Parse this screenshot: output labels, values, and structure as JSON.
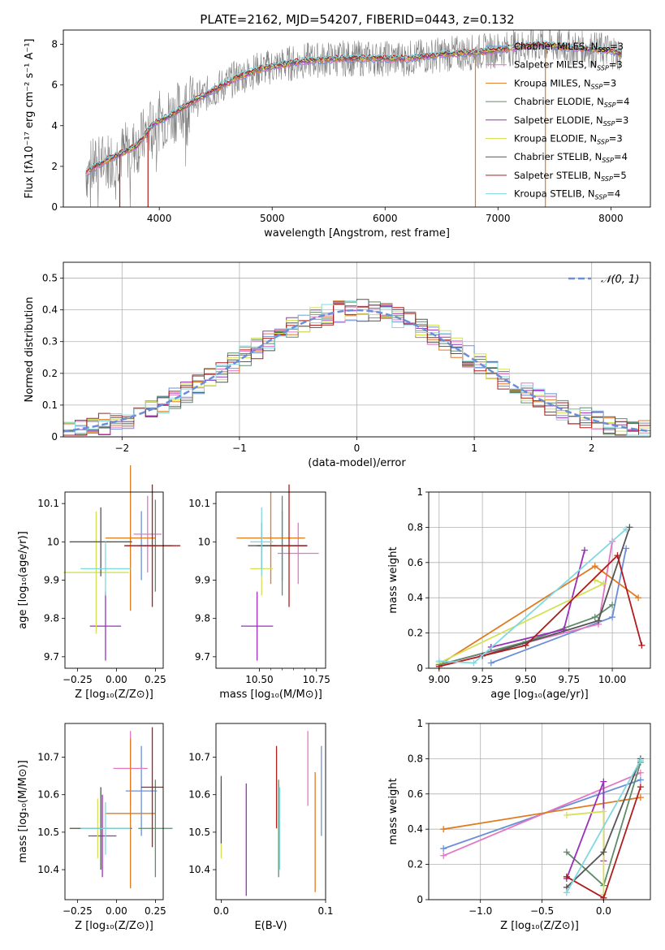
{
  "figure": {
    "title": "PLATE=2162, MJD=54207, FIBERID=0443, z=0.132"
  },
  "models": [
    {
      "label": "Chabrier MILES, N",
      "sub": "SSP",
      "suffix": "=3",
      "color": "#6a8fd8"
    },
    {
      "label": "Salpeter MILES, N",
      "sub": "SSP",
      "suffix": "=3",
      "color": "#e377c2"
    },
    {
      "label": "Kroupa MILES, N",
      "sub": "SSP",
      "suffix": "=3",
      "color": "#e07b20"
    },
    {
      "label": "Chabrier ELODIE, N",
      "sub": "SSP",
      "suffix": "=4",
      "color": "#5e8c6a"
    },
    {
      "label": "Salpeter ELODIE, N",
      "sub": "SSP",
      "suffix": "=3",
      "color": "#9b30b8"
    },
    {
      "label": "Kroupa ELODIE, N",
      "sub": "SSP",
      "suffix": "=3",
      "color": "#d4e157"
    },
    {
      "label": "Chabrier STELIB, N",
      "sub": "SSP",
      "suffix": "=4",
      "color": "#555555"
    },
    {
      "label": "Salpeter STELIB, N",
      "sub": "SSP",
      "suffix": "=5",
      "color": "#b01c1c"
    },
    {
      "label": "Kroupa STELIB, N",
      "sub": "SSP",
      "suffix": "=4",
      "color": "#80d8e0"
    }
  ],
  "chart_data": [
    {
      "id": "spectrum",
      "type": "line",
      "xlabel": "wavelength [Angstrom, rest frame]",
      "ylabel": "Flux [fλ10⁻¹⁷ erg cm⁻² s⁻¹ A⁻¹]",
      "xlim": [
        3150,
        8350
      ],
      "ylim": [
        0,
        8.7
      ],
      "xticks": [
        4000,
        5000,
        6000,
        7000,
        8000
      ],
      "yticks": [
        0,
        2,
        4,
        6,
        8
      ],
      "spectrum_anchors": [
        [
          3350,
          1.7
        ],
        [
          3500,
          2.2
        ],
        [
          3650,
          2.6
        ],
        [
          3800,
          3.0
        ],
        [
          3950,
          4.1
        ],
        [
          4100,
          4.5
        ],
        [
          4300,
          5.2
        ],
        [
          4500,
          5.8
        ],
        [
          4700,
          6.4
        ],
        [
          4900,
          6.8
        ],
        [
          5100,
          7.0
        ],
        [
          5300,
          7.2
        ],
        [
          5600,
          7.3
        ],
        [
          5900,
          7.3
        ],
        [
          6200,
          7.3
        ],
        [
          6500,
          7.5
        ],
        [
          6800,
          7.6
        ],
        [
          7100,
          7.8
        ],
        [
          7400,
          8.0
        ],
        [
          7700,
          7.8
        ],
        [
          8000,
          7.7
        ],
        [
          8100,
          7.5
        ]
      ],
      "drops": [
        3650,
        3900,
        6800,
        7420
      ],
      "grid": false,
      "legend": "upper right"
    },
    {
      "id": "residuals",
      "type": "histogram",
      "xlabel": "(data-model)/error",
      "ylabel": "Normed distribution",
      "xlim": [
        -2.5,
        2.5
      ],
      "ylim": [
        0,
        0.55
      ],
      "xticks": [
        -2,
        -1,
        0,
        1,
        2
      ],
      "yticks": [
        0.0,
        0.1,
        0.2,
        0.3,
        0.4,
        0.5
      ],
      "bin_width": 0.1,
      "reference_label": "𝒩(0, 1)",
      "reference_color": "#6a8fd8",
      "grid": true,
      "legend": "upper right"
    },
    {
      "id": "age-vs-Z",
      "type": "errorbar",
      "xlabel": "Z [log₁₀(Z/Z⊙)]",
      "ylabel": "age  [log₁₀(age/yr)]",
      "xlim": [
        -0.33,
        0.3
      ],
      "ylim": [
        9.67,
        10.13
      ],
      "xticks": [
        -0.25,
        0.0,
        0.25
      ],
      "xtick_labels": [
        "−0.25",
        "0.00",
        "0.25"
      ],
      "yticks": [
        9.7,
        9.8,
        9.9,
        10.0,
        10.1
      ],
      "points": [
        {
          "x": 0.16,
          "xerr": 0.1,
          "y": 9.99,
          "yerr": 0.09
        },
        {
          "x": 0.2,
          "xerr": 0.09,
          "y": 10.02,
          "yerr": 0.1
        },
        {
          "x": 0.09,
          "xerr": 0.16,
          "y": 10.01,
          "yerr": 0.19
        },
        {
          "x": 0.25,
          "xerr": 0.11,
          "y": 9.99,
          "yerr": 0.12
        },
        {
          "x": -0.07,
          "xerr": 0.1,
          "y": 9.78,
          "yerr": 0.09
        },
        {
          "x": -0.13,
          "xerr": 0.21,
          "y": 9.92,
          "yerr": 0.16
        },
        {
          "x": -0.1,
          "xerr": 0.2,
          "y": 10.0,
          "yerr": 0.09
        },
        {
          "x": 0.23,
          "xerr": 0.18,
          "y": 9.99,
          "yerr": 0.16
        },
        {
          "x": -0.07,
          "xerr": 0.16,
          "y": 9.93,
          "yerr": 0.07
        }
      ]
    },
    {
      "id": "age-vs-mass",
      "type": "errorbar",
      "xlabel": "mass [log₁₀(M/M⊙)]",
      "ylabel": "",
      "xlim": [
        10.31,
        10.79
      ],
      "ylim": [
        9.67,
        10.13
      ],
      "xticks": [
        10.5,
        10.75
      ],
      "xtick_labels": [
        "10.50",
        "10.75"
      ],
      "xminor": [
        10.55,
        10.6,
        10.65,
        10.7
      ],
      "yticks": [
        9.7,
        9.8,
        9.9,
        10.0,
        10.1
      ],
      "points": [
        {
          "x": 10.6,
          "xerr": 0.11,
          "y": 9.99,
          "yerr": 0.09
        },
        {
          "x": 10.67,
          "xerr": 0.09,
          "y": 9.97,
          "yerr": 0.08
        },
        {
          "x": 10.55,
          "xerr": 0.15,
          "y": 10.01,
          "yerr": 0.12
        },
        {
          "x": 10.6,
          "xerr": 0.11,
          "y": 9.99,
          "yerr": 0.13
        },
        {
          "x": 10.49,
          "xerr": 0.07,
          "y": 9.78,
          "yerr": 0.09
        },
        {
          "x": 10.51,
          "xerr": 0.05,
          "y": 9.93,
          "yerr": 0.07
        },
        {
          "x": 10.51,
          "xerr": 0.06,
          "y": 9.99,
          "yerr": 0.06
        },
        {
          "x": 10.63,
          "xerr": 0.08,
          "y": 9.99,
          "yerr": 0.16
        },
        {
          "x": 10.51,
          "xerr": 0.05,
          "y": 10.0,
          "yerr": 0.09
        }
      ]
    },
    {
      "id": "weight-vs-age",
      "type": "line",
      "xlabel": "age  [log₁₀(age/yr)]",
      "ylabel": "mass weight",
      "xlim": [
        8.94,
        10.22
      ],
      "ylim": [
        0,
        1.0
      ],
      "xticks": [
        9.0,
        9.25,
        9.5,
        9.75,
        10.0
      ],
      "xtick_labels": [
        "9.00",
        "9.25",
        "9.50",
        "9.75",
        "10.00"
      ],
      "yticks": [
        0.0,
        0.2,
        0.4,
        0.6,
        0.8,
        1.0
      ],
      "grid": true,
      "series": [
        {
          "x": [
            9.3,
            10.0,
            10.08
          ],
          "y": [
            0.03,
            0.29,
            0.68
          ]
        },
        {
          "x": [
            9.0,
            9.92,
            10.0
          ],
          "y": [
            0.02,
            0.25,
            0.72
          ]
        },
        {
          "x": [
            9.0,
            9.9,
            10.15
          ],
          "y": [
            0.02,
            0.58,
            0.4
          ]
        },
        {
          "x": [
            9.0,
            9.5,
            9.9,
            10.0
          ],
          "y": [
            0.02,
            0.15,
            0.29,
            0.36
          ]
        },
        {
          "x": [
            9.3,
            9.72,
            9.84
          ],
          "y": [
            0.12,
            0.22,
            0.67
          ]
        },
        {
          "x": [
            9.0,
            9.95,
            9.9
          ],
          "y": [
            0.03,
            0.48,
            0.5
          ]
        },
        {
          "x": [
            9.25,
            9.92,
            10.1
          ],
          "y": [
            0.07,
            0.27,
            0.8
          ]
        },
        {
          "x": [
            9.0,
            9.5,
            10.03,
            10.17
          ],
          "y": [
            0.01,
            0.13,
            0.64,
            0.13
          ]
        },
        {
          "x": [
            9.0,
            9.2,
            10.08
          ],
          "y": [
            0.04,
            0.03,
            0.79
          ]
        }
      ]
    },
    {
      "id": "mass-vs-Z",
      "type": "errorbar",
      "xlabel": "Z [log₁₀(Z/Z⊙)]",
      "ylabel": "mass [log₁₀(M/M⊙)]",
      "xlim": [
        -0.33,
        0.3
      ],
      "ylim": [
        10.32,
        10.79
      ],
      "xticks": [
        -0.25,
        0.0,
        0.25
      ],
      "xtick_labels": [
        "−0.25",
        "0.00",
        "0.25"
      ],
      "yticks": [
        10.4,
        10.5,
        10.6,
        10.7
      ],
      "points": [
        {
          "x": 0.16,
          "xerr": 0.1,
          "y": 10.61,
          "yerr": 0.12
        },
        {
          "x": 0.09,
          "xerr": 0.11,
          "y": 10.67,
          "yerr": 0.1
        },
        {
          "x": 0.09,
          "xerr": 0.16,
          "y": 10.55,
          "yerr": 0.2
        },
        {
          "x": 0.25,
          "xerr": 0.11,
          "y": 10.51,
          "yerr": 0.13
        },
        {
          "x": -0.09,
          "xerr": 0.09,
          "y": 10.49,
          "yerr": 0.11
        },
        {
          "x": -0.12,
          "xerr": 0.18,
          "y": 10.51,
          "yerr": 0.08
        },
        {
          "x": -0.1,
          "xerr": 0.2,
          "y": 10.51,
          "yerr": 0.11
        },
        {
          "x": 0.23,
          "xerr": 0.07,
          "y": 10.62,
          "yerr": 0.16
        },
        {
          "x": -0.07,
          "xerr": 0.16,
          "y": 10.51,
          "yerr": 0.07
        }
      ]
    },
    {
      "id": "mass-vs-EBV",
      "type": "errorbar",
      "xlabel": "E(B-V)",
      "ylabel": "",
      "xlim": [
        -0.005,
        0.1
      ],
      "ylim": [
        10.32,
        10.79
      ],
      "xticks": [
        0.0,
        0.1
      ],
      "xtick_labels": [
        "0.0",
        "0.1"
      ],
      "yticks": [
        10.4,
        10.5,
        10.6,
        10.7
      ],
      "points": [
        {
          "x": 0.096,
          "y": 10.61,
          "yerr": 0.12
        },
        {
          "x": 0.083,
          "y": 10.67,
          "yerr": 0.1
        },
        {
          "x": 0.09,
          "y": 10.5,
          "yerr": 0.16
        },
        {
          "x": 0.055,
          "y": 10.51,
          "yerr": 0.13
        },
        {
          "x": 0.024,
          "y": 10.48,
          "yerr": 0.15
        },
        {
          "x": 0.0,
          "y": 10.53,
          "yerr": 0.1
        },
        {
          "x": 0.0,
          "y": 10.56,
          "yerr": 0.09
        },
        {
          "x": 0.053,
          "y": 10.62,
          "yerr": 0.11
        },
        {
          "x": 0.056,
          "y": 10.51,
          "yerr": 0.11
        }
      ]
    },
    {
      "id": "weight-vs-Z",
      "type": "line",
      "xlabel": "Z [log₁₀(Z/Z⊙)]",
      "ylabel": "mass weight",
      "xlim": [
        -1.42,
        0.38
      ],
      "ylim": [
        0,
        1.0
      ],
      "xticks": [
        -1.0,
        -0.5,
        0.0
      ],
      "xtick_labels": [
        "−1.0",
        "−0.5",
        "0.0"
      ],
      "yticks": [
        0.0,
        0.2,
        0.4,
        0.6,
        0.8,
        1.0
      ],
      "grid": true,
      "series": [
        {
          "x": [
            -1.3,
            0.3
          ],
          "y": [
            0.29,
            0.68
          ]
        },
        {
          "x": [
            -1.3,
            0.3
          ],
          "y": [
            0.25,
            0.72
          ]
        },
        {
          "x": [
            -1.3,
            0.3
          ],
          "y": [
            0.4,
            0.58
          ]
        },
        {
          "x": [
            -0.3,
            0.0,
            0.3
          ],
          "y": [
            0.27,
            0.08,
            0.78
          ]
        },
        {
          "x": [
            -0.3,
            0.0,
            0.0
          ],
          "y": [
            0.12,
            0.67,
            0.22
          ]
        },
        {
          "x": [
            -0.3,
            0.0,
            0.0
          ],
          "y": [
            0.48,
            0.5,
            0.03
          ]
        },
        {
          "x": [
            -0.3,
            0.0,
            0.3
          ],
          "y": [
            0.07,
            0.27,
            0.8
          ]
        },
        {
          "x": [
            -0.3,
            0.0,
            0.3
          ],
          "y": [
            0.13,
            0.01,
            0.64
          ]
        },
        {
          "x": [
            -0.3,
            0.3
          ],
          "y": [
            0.04,
            0.79
          ]
        }
      ]
    }
  ]
}
